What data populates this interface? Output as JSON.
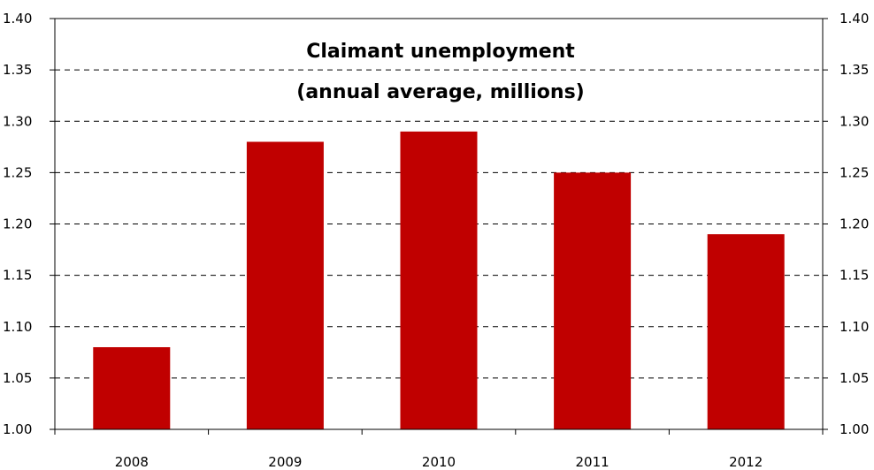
{
  "chart_data": {
    "type": "bar",
    "title": "Claimant unemployment",
    "subtitle": "(annual average, millions)",
    "categories": [
      "2008",
      "2009",
      "2010",
      "2011",
      "2012"
    ],
    "values": [
      1.08,
      1.28,
      1.29,
      1.25,
      1.19
    ],
    "ylim": [
      1.0,
      1.4
    ],
    "yticks": [
      "1.00",
      "1.05",
      "1.10",
      "1.15",
      "1.20",
      "1.25",
      "1.30",
      "1.35",
      "1.40"
    ],
    "grid": "dashed horizontal",
    "bar_color": "#C00000",
    "xlabel": "",
    "ylabel": ""
  }
}
